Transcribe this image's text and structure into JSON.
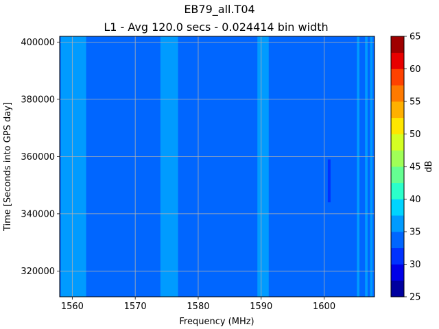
{
  "chart_data": {
    "type": "heatmap",
    "title": "EB79_all.T04",
    "subtitle": "L1 - Avg 120.0 secs - 0.024414 bin width",
    "xlabel": "Frequency (MHz)",
    "ylabel": "Time [Seconds into GPS day]",
    "colorbar_label": "dB",
    "xlim": [
      1558,
      1608
    ],
    "ylim": [
      311000,
      402000
    ],
    "x_ticks": [
      1560,
      1570,
      1580,
      1590,
      1600
    ],
    "x_tick_labels": [
      "1560",
      "1570",
      "1580",
      "1590",
      "1600"
    ],
    "y_ticks": [
      320000,
      340000,
      360000,
      380000,
      400000
    ],
    "y_tick_labels": [
      "320000",
      "340000",
      "360000",
      "380000",
      "400000"
    ],
    "grid": true,
    "colorbar_levels": [
      25,
      27.5,
      30,
      32.5,
      35,
      37.5,
      40,
      42.5,
      45,
      47.5,
      50,
      52.5,
      55,
      57.5,
      60,
      62.5,
      65
    ],
    "colorbar_ticks": [
      25,
      30,
      35,
      40,
      45,
      50,
      55,
      60,
      65
    ],
    "colorbar_tick_labels": [
      "25",
      "30",
      "35",
      "40",
      "45",
      "50",
      "55",
      "60",
      "65"
    ],
    "colorbar_colors": [
      "#00009f",
      "#0000e8",
      "#0032ff",
      "#0066ff",
      "#009bff",
      "#00d4ff",
      "#2bffca",
      "#65ff92",
      "#a0ff57",
      "#d4ff23",
      "#ffe600",
      "#ffb000",
      "#ff7a00",
      "#ff4200",
      "#e80000",
      "#9f0000"
    ],
    "background_level_db": 33.5,
    "bands": [
      {
        "x_range": [
          1558.2,
          1562.2
        ],
        "level_db": 36
      },
      {
        "x_range": [
          1574.0,
          1576.8
        ],
        "level_db": 37
      },
      {
        "x_range": [
          1589.4,
          1591.2
        ],
        "level_db": 36
      },
      {
        "x_range": [
          1605.2,
          1605.6
        ],
        "level_db": 36
      },
      {
        "x_range": [
          1606.5,
          1606.9
        ],
        "level_db": 36
      },
      {
        "x_range": [
          1607.3,
          1607.7
        ],
        "level_db": 36
      }
    ],
    "low_spots": [
      {
        "x": 1600.8,
        "y_range": [
          344000,
          359000
        ],
        "level_db": 31
      }
    ]
  }
}
